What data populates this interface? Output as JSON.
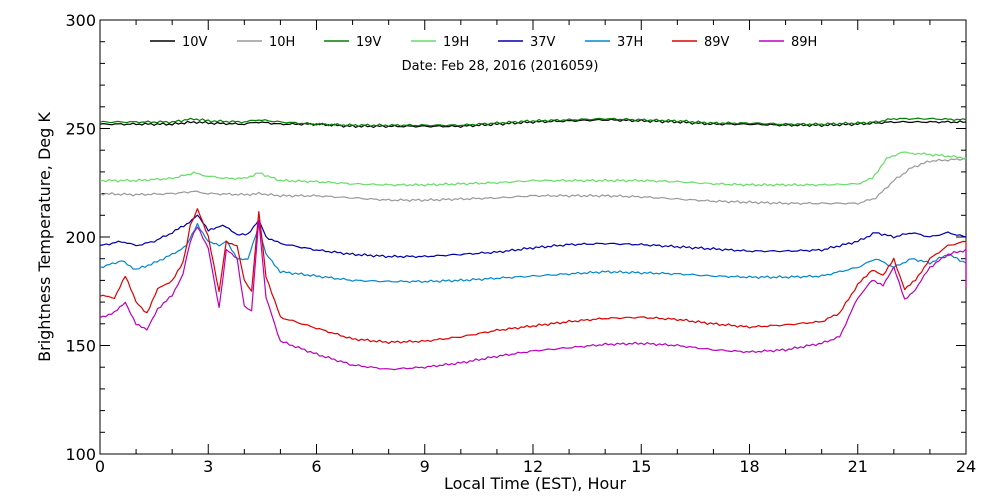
{
  "chart_data": {
    "type": "line",
    "xlabel": "Local Time (EST), Hour",
    "ylabel": "Brightness Temperature, Deg K",
    "annotation": "Date: Feb 28, 2016 (2016059)",
    "xlim": [
      0,
      24
    ],
    "ylim": [
      100,
      300
    ],
    "xticks": [
      0,
      3,
      6,
      9,
      12,
      15,
      18,
      21,
      24
    ],
    "yticks": [
      100,
      150,
      200,
      250,
      300
    ],
    "grid": false,
    "legend_position": "top",
    "series": [
      {
        "name": "10V",
        "color": "#000000",
        "points": [
          [
            0,
            252
          ],
          [
            1,
            252
          ],
          [
            2,
            252
          ],
          [
            2.6,
            253
          ],
          [
            3,
            252.5
          ],
          [
            4,
            252
          ],
          [
            4.4,
            253
          ],
          [
            5,
            252
          ],
          [
            6,
            252
          ],
          [
            7,
            251
          ],
          [
            8,
            251
          ],
          [
            9,
            251
          ],
          [
            10,
            251
          ],
          [
            11,
            252
          ],
          [
            12,
            253
          ],
          [
            13,
            253.5
          ],
          [
            14,
            254
          ],
          [
            15,
            253.5
          ],
          [
            16,
            253
          ],
          [
            17,
            252
          ],
          [
            18,
            252
          ],
          [
            19,
            251.5
          ],
          [
            20,
            251.5
          ],
          [
            21,
            252
          ],
          [
            21.5,
            252.5
          ],
          [
            22,
            253
          ],
          [
            23,
            253
          ],
          [
            24,
            253
          ]
        ]
      },
      {
        "name": "10H",
        "color": "#999999",
        "points": [
          [
            0,
            220
          ],
          [
            1,
            219.5
          ],
          [
            2,
            220
          ],
          [
            2.6,
            221
          ],
          [
            3,
            220
          ],
          [
            4,
            219.5
          ],
          [
            4.4,
            220
          ],
          [
            5,
            219
          ],
          [
            6,
            219
          ],
          [
            7,
            218
          ],
          [
            8,
            217
          ],
          [
            9,
            217
          ],
          [
            10,
            217.5
          ],
          [
            11,
            218
          ],
          [
            12,
            219
          ],
          [
            13,
            219
          ],
          [
            14,
            219
          ],
          [
            15,
            218.5
          ],
          [
            16,
            217.5
          ],
          [
            17,
            216.5
          ],
          [
            18,
            216
          ],
          [
            19,
            215.5
          ],
          [
            20,
            215.5
          ],
          [
            21,
            215.5
          ],
          [
            21.5,
            218
          ],
          [
            22,
            226
          ],
          [
            22.5,
            232
          ],
          [
            23,
            235
          ],
          [
            24,
            236
          ]
        ]
      },
      {
        "name": "19V",
        "color": "#008000",
        "points": [
          [
            0,
            253
          ],
          [
            1,
            253
          ],
          [
            2,
            253
          ],
          [
            2.6,
            254.5
          ],
          [
            3,
            253.5
          ],
          [
            4,
            253
          ],
          [
            4.4,
            254
          ],
          [
            5,
            253
          ],
          [
            6,
            252
          ],
          [
            7,
            251.5
          ],
          [
            8,
            251.5
          ],
          [
            9,
            251.5
          ],
          [
            10,
            251.5
          ],
          [
            11,
            252.5
          ],
          [
            12,
            253.5
          ],
          [
            13,
            254
          ],
          [
            14,
            254.5
          ],
          [
            15,
            254
          ],
          [
            16,
            253.5
          ],
          [
            17,
            252.5
          ],
          [
            18,
            252.5
          ],
          [
            19,
            252
          ],
          [
            20,
            252
          ],
          [
            21,
            252.5
          ],
          [
            21.5,
            253
          ],
          [
            22,
            254.5
          ],
          [
            23,
            254.5
          ],
          [
            24,
            254
          ]
        ]
      },
      {
        "name": "19H",
        "color": "#66dd66",
        "points": [
          [
            0,
            226
          ],
          [
            1,
            226
          ],
          [
            2,
            227
          ],
          [
            2.6,
            229.5
          ],
          [
            3,
            228
          ],
          [
            3.5,
            227
          ],
          [
            4,
            227
          ],
          [
            4.4,
            229.5
          ],
          [
            5,
            226
          ],
          [
            6,
            225.5
          ],
          [
            7,
            224.5
          ],
          [
            8,
            224
          ],
          [
            9,
            224
          ],
          [
            10,
            224.5
          ],
          [
            11,
            225
          ],
          [
            12,
            226
          ],
          [
            13,
            226
          ],
          [
            14,
            226
          ],
          [
            15,
            226
          ],
          [
            16,
            225.5
          ],
          [
            17,
            224.5
          ],
          [
            18,
            224
          ],
          [
            19,
            224
          ],
          [
            20,
            224
          ],
          [
            21,
            224.5
          ],
          [
            21.4,
            227
          ],
          [
            21.8,
            236
          ],
          [
            22.2,
            239
          ],
          [
            23,
            238
          ],
          [
            24,
            236.5
          ]
        ]
      },
      {
        "name": "37V",
        "color": "#0000aa",
        "points": [
          [
            0,
            196
          ],
          [
            0.6,
            198
          ],
          [
            1,
            196
          ],
          [
            1.5,
            198
          ],
          [
            2,
            202
          ],
          [
            2.4,
            206
          ],
          [
            2.7,
            210
          ],
          [
            3,
            203
          ],
          [
            3.3,
            205
          ],
          [
            3.5,
            205
          ],
          [
            3.8,
            201
          ],
          [
            4.1,
            201
          ],
          [
            4.4,
            208
          ],
          [
            4.6,
            200
          ],
          [
            5,
            197
          ],
          [
            6,
            194
          ],
          [
            7,
            192
          ],
          [
            8,
            191
          ],
          [
            9,
            191
          ],
          [
            10,
            192
          ],
          [
            11,
            193
          ],
          [
            12,
            195
          ],
          [
            13,
            196.5
          ],
          [
            14,
            197
          ],
          [
            15,
            196.5
          ],
          [
            16,
            195.5
          ],
          [
            17,
            194.5
          ],
          [
            18,
            193.5
          ],
          [
            19,
            193.5
          ],
          [
            20,
            194
          ],
          [
            20.5,
            196
          ],
          [
            21,
            198
          ],
          [
            21.5,
            202
          ],
          [
            22,
            200
          ],
          [
            22.5,
            202
          ],
          [
            23,
            200
          ],
          [
            23.5,
            202
          ],
          [
            24,
            200
          ]
        ]
      },
      {
        "name": "37H",
        "color": "#0088cc",
        "points": [
          [
            0,
            186
          ],
          [
            0.6,
            189
          ],
          [
            1,
            185
          ],
          [
            1.5,
            188
          ],
          [
            2,
            192
          ],
          [
            2.4,
            196
          ],
          [
            2.7,
            206
          ],
          [
            3,
            198
          ],
          [
            3.3,
            196
          ],
          [
            3.5,
            198
          ],
          [
            3.8,
            190
          ],
          [
            4.1,
            190
          ],
          [
            4.4,
            205
          ],
          [
            4.6,
            192
          ],
          [
            5,
            184
          ],
          [
            6,
            182
          ],
          [
            7,
            180
          ],
          [
            8,
            179.5
          ],
          [
            9,
            179.5
          ],
          [
            10,
            180
          ],
          [
            11,
            181
          ],
          [
            12,
            182
          ],
          [
            13,
            183
          ],
          [
            14,
            184
          ],
          [
            15,
            183.5
          ],
          [
            16,
            183
          ],
          [
            17,
            182
          ],
          [
            18,
            181.5
          ],
          [
            19,
            181.5
          ],
          [
            20,
            182
          ],
          [
            20.5,
            184
          ],
          [
            21,
            186
          ],
          [
            21.5,
            190
          ],
          [
            22,
            186
          ],
          [
            22.5,
            190
          ],
          [
            23,
            188
          ],
          [
            23.5,
            192
          ],
          [
            24,
            188
          ]
        ]
      },
      {
        "name": "89V",
        "color": "#dd0000",
        "points": [
          [
            0,
            173
          ],
          [
            0.4,
            172
          ],
          [
            0.7,
            182
          ],
          [
            1,
            170
          ],
          [
            1.3,
            165
          ],
          [
            1.6,
            176
          ],
          [
            2,
            180
          ],
          [
            2.3,
            188
          ],
          [
            2.5,
            205
          ],
          [
            2.7,
            213
          ],
          [
            3,
            200
          ],
          [
            3.3,
            175
          ],
          [
            3.5,
            198
          ],
          [
            3.8,
            196
          ],
          [
            4,
            180
          ],
          [
            4.2,
            175
          ],
          [
            4.4,
            212
          ],
          [
            4.6,
            182
          ],
          [
            5,
            163
          ],
          [
            6,
            158
          ],
          [
            7,
            153
          ],
          [
            8,
            151.5
          ],
          [
            9,
            152
          ],
          [
            10,
            154
          ],
          [
            11,
            157
          ],
          [
            12,
            159
          ],
          [
            13,
            161
          ],
          [
            14,
            162.5
          ],
          [
            15,
            163
          ],
          [
            16,
            162
          ],
          [
            17,
            160
          ],
          [
            18,
            158.5
          ],
          [
            19,
            159.5
          ],
          [
            20,
            161
          ],
          [
            20.5,
            165
          ],
          [
            21,
            178
          ],
          [
            21.4,
            185
          ],
          [
            21.7,
            182
          ],
          [
            22,
            190
          ],
          [
            22.3,
            176
          ],
          [
            22.6,
            180
          ],
          [
            23,
            190
          ],
          [
            23.5,
            196
          ],
          [
            24,
            198
          ],
          [
            24,
            177
          ]
        ]
      },
      {
        "name": "89H",
        "color": "#bb00bb",
        "points": [
          [
            0,
            163
          ],
          [
            0.4,
            165
          ],
          [
            0.7,
            170
          ],
          [
            1,
            160
          ],
          [
            1.3,
            157
          ],
          [
            1.6,
            167
          ],
          [
            2,
            173
          ],
          [
            2.3,
            183
          ],
          [
            2.5,
            198
          ],
          [
            2.7,
            205
          ],
          [
            3,
            195
          ],
          [
            3.3,
            167
          ],
          [
            3.5,
            194
          ],
          [
            3.8,
            190
          ],
          [
            4,
            168
          ],
          [
            4.2,
            166
          ],
          [
            4.4,
            208
          ],
          [
            4.6,
            172
          ],
          [
            5,
            152
          ],
          [
            6,
            146
          ],
          [
            7,
            141
          ],
          [
            8,
            139
          ],
          [
            9,
            140
          ],
          [
            10,
            142
          ],
          [
            11,
            145
          ],
          [
            12,
            147.5
          ],
          [
            13,
            149
          ],
          [
            14,
            150.5
          ],
          [
            15,
            151
          ],
          [
            16,
            150
          ],
          [
            17,
            148
          ],
          [
            18,
            147
          ],
          [
            19,
            148
          ],
          [
            20,
            151
          ],
          [
            20.5,
            154
          ],
          [
            21,
            172
          ],
          [
            21.4,
            180
          ],
          [
            21.7,
            178
          ],
          [
            22,
            186
          ],
          [
            22.3,
            171
          ],
          [
            22.6,
            176
          ],
          [
            23,
            186
          ],
          [
            23.5,
            192
          ],
          [
            24,
            194
          ],
          [
            24,
            178
          ]
        ]
      }
    ]
  }
}
